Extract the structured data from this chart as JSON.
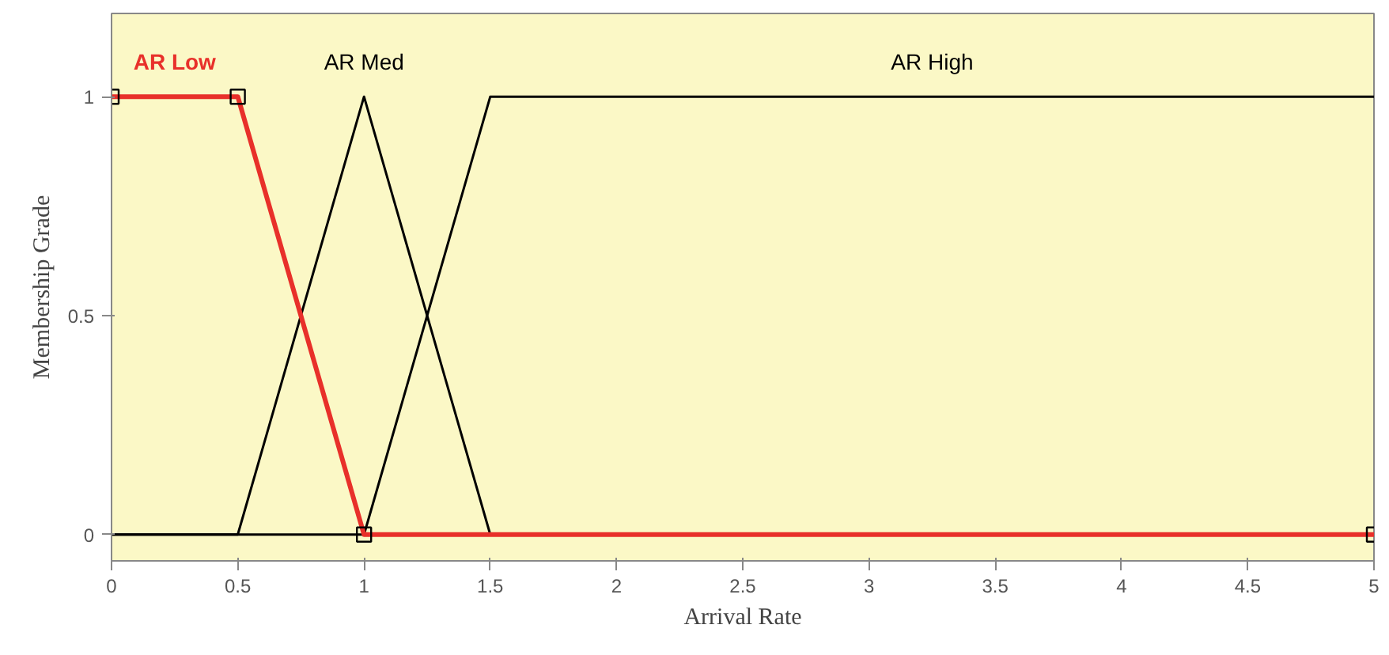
{
  "chart_data": {
    "type": "line",
    "xlabel": "Arrival Rate",
    "ylabel": "Membership Grade",
    "xlim": [
      0,
      5
    ],
    "ylim": [
      -0.06,
      1.19
    ],
    "xticks": [
      0,
      0.5,
      1,
      1.5,
      2,
      2.5,
      3,
      3.5,
      4,
      4.5,
      5
    ],
    "yticks": [
      0,
      0.5,
      1
    ],
    "grid": false,
    "line_style": "solid",
    "series": [
      {
        "name": "AR Med",
        "color": "#000000",
        "x": [
          0,
          0.5,
          1,
          1.5,
          5
        ],
        "values": [
          0,
          0,
          1,
          0,
          0
        ]
      },
      {
        "name": "AR High",
        "color": "#000000",
        "x": [
          0,
          1,
          1.5,
          5
        ],
        "values": [
          0,
          0,
          1,
          1
        ]
      },
      {
        "name": "AR Low",
        "color": "#e8302a",
        "x": [
          0,
          0.5,
          1,
          5
        ],
        "values": [
          1,
          1,
          0,
          0
        ],
        "marker": "square"
      }
    ]
  }
}
